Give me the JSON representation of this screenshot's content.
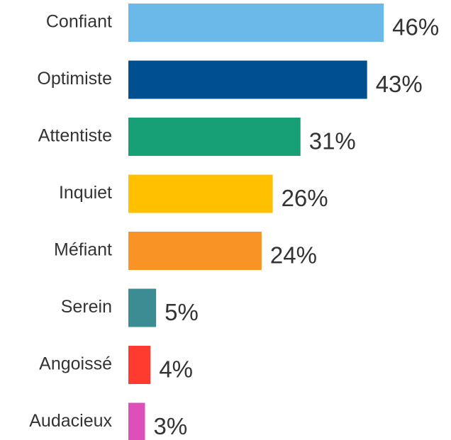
{
  "chart_data": {
    "type": "bar",
    "orientation": "horizontal",
    "categories": [
      "Confiant",
      "Optimiste",
      "Attentiste",
      "Inquiet",
      "Méfiant",
      "Serein",
      "Angoissé",
      "Audacieux"
    ],
    "values": [
      46,
      43,
      31,
      26,
      24,
      5,
      4,
      3
    ],
    "value_labels": [
      "46%",
      "43%",
      "31%",
      "26%",
      "24%",
      "5%",
      "4%",
      "3%"
    ],
    "colors": [
      "#6bb9e8",
      "#005091",
      "#17a075",
      "#ffc000",
      "#f99325",
      "#3b8c93",
      "#ff3b2f",
      "#de4fba"
    ]
  }
}
